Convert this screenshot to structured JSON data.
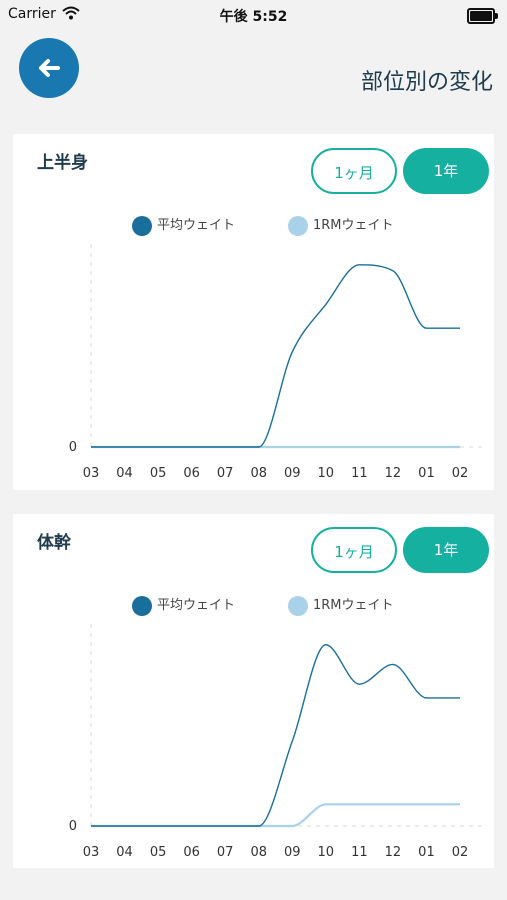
{
  "status_bar": {
    "carrier": "Carrier",
    "time": "午後 5:52"
  },
  "header": {
    "title": "部位別の変化"
  },
  "colors": {
    "accent": "#16b0a0",
    "avg_series": "#1a6e9c",
    "rm_series": "#a9d2e8",
    "back_button": "#1a78b0"
  },
  "cards": [
    {
      "title": "上半身",
      "buttons": {
        "month": "1ヶ月",
        "year": "1年"
      },
      "legend": {
        "avg": "平均ウェイト",
        "rm": "1RMウェイト"
      },
      "zero_label": "0"
    },
    {
      "title": "体幹",
      "buttons": {
        "month": "1ヶ月",
        "year": "1年"
      },
      "legend": {
        "avg": "平均ウェイト",
        "rm": "1RMウェイト"
      },
      "zero_label": "0"
    }
  ],
  "chart_data": [
    {
      "type": "line",
      "categories": [
        "03",
        "04",
        "05",
        "06",
        "07",
        "08",
        "09",
        "10",
        "11",
        "12",
        "01",
        "02"
      ],
      "series": [
        {
          "name": "平均ウェイト",
          "values": [
            0,
            0,
            0,
            0,
            0,
            0,
            0.48,
            0.72,
            0.92,
            0.89,
            0.6,
            0.6
          ]
        },
        {
          "name": "1RMウェイト",
          "values": [
            0,
            0,
            0,
            0,
            0,
            0,
            0,
            0,
            0,
            0,
            0,
            0
          ]
        }
      ],
      "ylim": [
        0,
        1
      ]
    },
    {
      "type": "line",
      "categories": [
        "03",
        "04",
        "05",
        "06",
        "07",
        "08",
        "09",
        "10",
        "11",
        "12",
        "01",
        "02"
      ],
      "series": [
        {
          "name": "平均ウェイト",
          "values": [
            0,
            0,
            0,
            0,
            0,
            0,
            0.43,
            0.92,
            0.72,
            0.82,
            0.65,
            0.65
          ]
        },
        {
          "name": "1RMウェイト",
          "values": [
            0,
            0,
            0,
            0,
            0,
            0,
            0,
            0.11,
            0.11,
            0.11,
            0.11,
            0.11
          ]
        }
      ],
      "ylim": [
        0,
        1
      ]
    }
  ]
}
